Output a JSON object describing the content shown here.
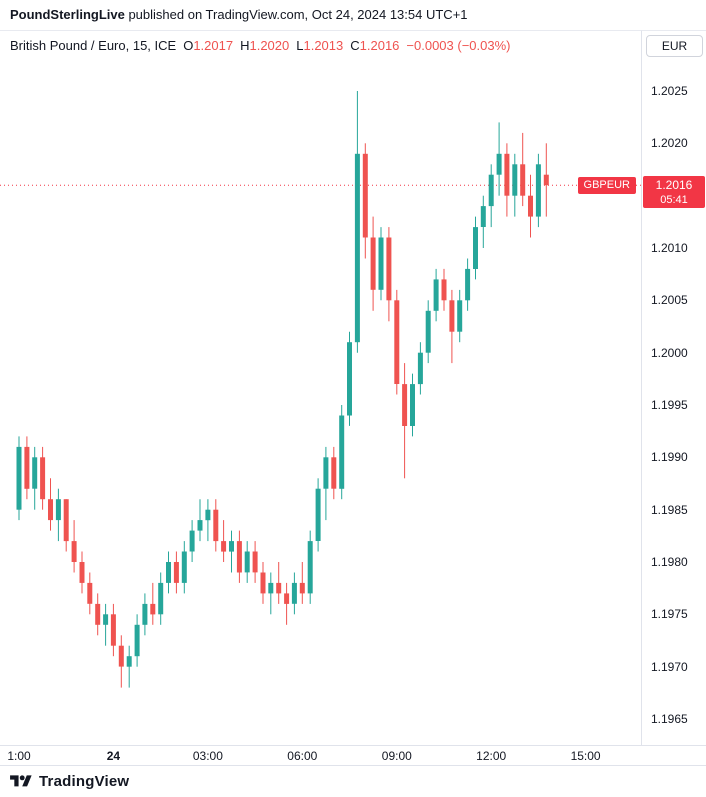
{
  "header": {
    "author": "PoundSterlingLive",
    "rest": " published on TradingView.com, Oct 24, 2024 13:54 UTC+1"
  },
  "legend": {
    "symbol": "British Pound / Euro, 15, ICE",
    "fields": [
      {
        "label": "O",
        "value": "1.2017"
      },
      {
        "label": "H",
        "value": "1.2020"
      },
      {
        "label": "L",
        "value": "1.2013"
      },
      {
        "label": "C",
        "value": "1.2016"
      }
    ],
    "change": "−0.0003 (−0.03%)"
  },
  "price_axis": {
    "currency": "EUR",
    "labels": [
      "1.2025",
      "1.2020",
      "1.2010",
      "1.2005",
      "1.2000",
      "1.1995",
      "1.1990",
      "1.1985",
      "1.1980",
      "1.1975",
      "1.1970",
      "1.1965"
    ]
  },
  "time_axis": {
    "labels": [
      {
        "text": "1:00",
        "i": 0,
        "bold": false
      },
      {
        "text": "24",
        "i": 12,
        "bold": true
      },
      {
        "text": "03:00",
        "i": 24,
        "bold": false
      },
      {
        "text": "06:00",
        "i": 36,
        "bold": false
      },
      {
        "text": "09:00",
        "i": 48,
        "bold": false
      },
      {
        "text": "12:00",
        "i": 60,
        "bold": false
      },
      {
        "text": "15:00",
        "i": 72,
        "bold": false
      }
    ]
  },
  "price_line": {
    "symbol": "GBPEUR",
    "price": "1.2016",
    "countdown": "05:41"
  },
  "footer": {
    "brand": "TradingView"
  },
  "colors": {
    "up": "#26a69a",
    "down": "#ef5350",
    "line": "#f23645",
    "badge": "#f23645"
  },
  "chart_data": {
    "type": "candlestick",
    "title": "British Pound / Euro, 15, ICE",
    "symbol": "GBPEUR",
    "interval_minutes": 15,
    "last": 1.2016,
    "change": -0.0003,
    "change_pct": -0.03,
    "ylim": [
      1.1963,
      1.2028
    ],
    "grid": false,
    "columns": [
      "time",
      "open",
      "high",
      "low",
      "close"
    ],
    "candles": [
      [
        "21:00",
        1.1985,
        1.1992,
        1.1984,
        1.1991
      ],
      [
        "21:15",
        1.1991,
        1.1992,
        1.1986,
        1.1987
      ],
      [
        "21:30",
        1.1987,
        1.1991,
        1.1985,
        1.199
      ],
      [
        "21:45",
        1.199,
        1.1991,
        1.1985,
        1.1986
      ],
      [
        "22:00",
        1.1986,
        1.1988,
        1.1983,
        1.1984
      ],
      [
        "22:15",
        1.1984,
        1.1987,
        1.1982,
        1.1986
      ],
      [
        "22:30",
        1.1986,
        1.1986,
        1.1981,
        1.1982
      ],
      [
        "22:45",
        1.1982,
        1.1984,
        1.1979,
        1.198
      ],
      [
        "23:00",
        1.198,
        1.1981,
        1.1977,
        1.1978
      ],
      [
        "23:15",
        1.1978,
        1.1979,
        1.1975,
        1.1976
      ],
      [
        "23:30",
        1.1976,
        1.1977,
        1.1973,
        1.1974
      ],
      [
        "23:45",
        1.1974,
        1.1976,
        1.1972,
        1.1975
      ],
      [
        "00:00",
        1.1975,
        1.1976,
        1.1971,
        1.1972
      ],
      [
        "00:15",
        1.1972,
        1.1973,
        1.1968,
        1.197
      ],
      [
        "00:30",
        1.197,
        1.1972,
        1.1968,
        1.1971
      ],
      [
        "00:45",
        1.1971,
        1.1975,
        1.197,
        1.1974
      ],
      [
        "01:00",
        1.1974,
        1.1977,
        1.1973,
        1.1976
      ],
      [
        "01:15",
        1.1976,
        1.1978,
        1.1974,
        1.1975
      ],
      [
        "01:30",
        1.1975,
        1.1979,
        1.1974,
        1.1978
      ],
      [
        "01:45",
        1.1978,
        1.1981,
        1.1977,
        1.198
      ],
      [
        "02:00",
        1.198,
        1.1981,
        1.1977,
        1.1978
      ],
      [
        "02:15",
        1.1978,
        1.1982,
        1.1977,
        1.1981
      ],
      [
        "02:30",
        1.1981,
        1.1984,
        1.198,
        1.1983
      ],
      [
        "02:45",
        1.1983,
        1.1986,
        1.1982,
        1.1984
      ],
      [
        "03:00",
        1.1984,
        1.1986,
        1.1982,
        1.1985
      ],
      [
        "03:15",
        1.1985,
        1.1986,
        1.1981,
        1.1982
      ],
      [
        "03:30",
        1.1982,
        1.1984,
        1.198,
        1.1981
      ],
      [
        "03:45",
        1.1981,
        1.1983,
        1.1979,
        1.1982
      ],
      [
        "04:00",
        1.1982,
        1.1983,
        1.1978,
        1.1979
      ],
      [
        "04:15",
        1.1979,
        1.1982,
        1.1978,
        1.1981
      ],
      [
        "04:30",
        1.1981,
        1.1982,
        1.1978,
        1.1979
      ],
      [
        "04:45",
        1.1979,
        1.198,
        1.1976,
        1.1977
      ],
      [
        "05:00",
        1.1977,
        1.1979,
        1.1975,
        1.1978
      ],
      [
        "05:15",
        1.1978,
        1.198,
        1.1976,
        1.1977
      ],
      [
        "05:30",
        1.1977,
        1.1978,
        1.1974,
        1.1976
      ],
      [
        "05:45",
        1.1976,
        1.1979,
        1.1975,
        1.1978
      ],
      [
        "06:00",
        1.1978,
        1.198,
        1.1976,
        1.1977
      ],
      [
        "06:15",
        1.1977,
        1.1983,
        1.1976,
        1.1982
      ],
      [
        "06:30",
        1.1982,
        1.1988,
        1.1981,
        1.1987
      ],
      [
        "06:45",
        1.1987,
        1.1991,
        1.1984,
        1.199
      ],
      [
        "07:00",
        1.199,
        1.1991,
        1.1986,
        1.1987
      ],
      [
        "07:15",
        1.1987,
        1.1995,
        1.1986,
        1.1994
      ],
      [
        "07:30",
        1.1994,
        1.2002,
        1.1993,
        1.2001
      ],
      [
        "07:45",
        1.2001,
        1.2025,
        1.2,
        1.2019
      ],
      [
        "08:00",
        1.2019,
        1.202,
        1.2009,
        1.2011
      ],
      [
        "08:15",
        1.2011,
        1.2013,
        1.2004,
        1.2006
      ],
      [
        "08:30",
        1.2006,
        1.2012,
        1.2005,
        1.2011
      ],
      [
        "08:45",
        1.2011,
        1.2012,
        1.2003,
        1.2005
      ],
      [
        "09:00",
        1.2005,
        1.2006,
        1.1996,
        1.1997
      ],
      [
        "09:15",
        1.1997,
        1.1999,
        1.1988,
        1.1993
      ],
      [
        "09:30",
        1.1993,
        1.1998,
        1.1992,
        1.1997
      ],
      [
        "09:45",
        1.1997,
        1.2001,
        1.1996,
        1.2
      ],
      [
        "10:00",
        1.2,
        1.2005,
        1.1999,
        1.2004
      ],
      [
        "10:15",
        1.2004,
        1.2008,
        1.2003,
        1.2007
      ],
      [
        "10:30",
        1.2007,
        1.2008,
        1.2004,
        1.2005
      ],
      [
        "10:45",
        1.2005,
        1.2006,
        1.1999,
        1.2002
      ],
      [
        "11:00",
        1.2002,
        1.2006,
        1.2001,
        1.2005
      ],
      [
        "11:15",
        1.2005,
        1.2009,
        1.2004,
        1.2008
      ],
      [
        "11:30",
        1.2008,
        1.2013,
        1.2007,
        1.2012
      ],
      [
        "11:45",
        1.2012,
        1.2015,
        1.201,
        1.2014
      ],
      [
        "12:00",
        1.2014,
        1.2018,
        1.2012,
        1.2017
      ],
      [
        "12:15",
        1.2017,
        1.2022,
        1.2015,
        1.2019
      ],
      [
        "12:30",
        1.2019,
        1.202,
        1.2013,
        1.2015
      ],
      [
        "12:45",
        1.2015,
        1.2019,
        1.2013,
        1.2018
      ],
      [
        "13:00",
        1.2018,
        1.2021,
        1.2014,
        1.2015
      ],
      [
        "13:15",
        1.2015,
        1.2017,
        1.2011,
        1.2013
      ],
      [
        "13:30",
        1.2013,
        1.2019,
        1.2012,
        1.2018
      ],
      [
        "13:45",
        1.2017,
        1.202,
        1.2013,
        1.2016
      ]
    ]
  }
}
